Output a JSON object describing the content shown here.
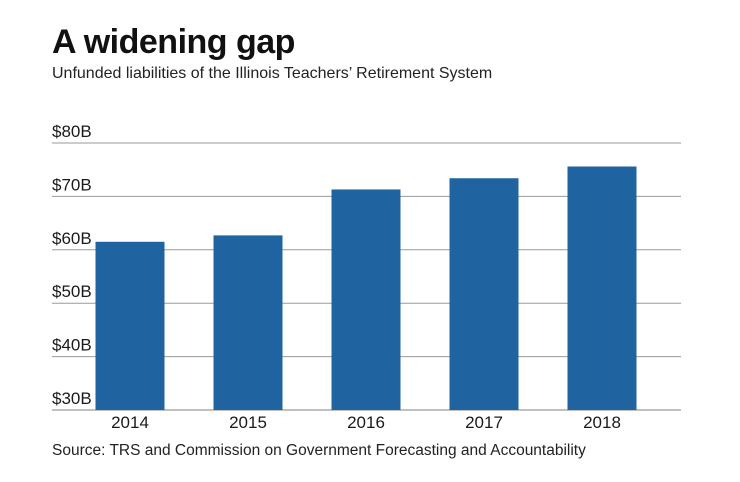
{
  "header": {
    "title": "A widening gap",
    "subtitle": "Unfunded liabilities of the Illinois Teachers’ Retirement System"
  },
  "footer": {
    "source": "Source: TRS and Commission on Government Forecasting and Accountability"
  },
  "colors": {
    "bar": "#1f64a0",
    "grid": "#9a9a9a",
    "axis": "#9a9a9a"
  },
  "chart_data": {
    "type": "bar",
    "title": "A widening gap",
    "subtitle": "Unfunded liabilities of the Illinois Teachers’ Retirement System",
    "xlabel": "",
    "ylabel": "",
    "categories": [
      "2014",
      "2015",
      "2016",
      "2017",
      "2018"
    ],
    "values": [
      61.5,
      62.7,
      71.3,
      73.4,
      75.6
    ],
    "ylim": [
      30,
      80
    ],
    "yticks": [
      30,
      40,
      50,
      60,
      70,
      80
    ],
    "ytick_labels": [
      "$30B",
      "$40B",
      "$50B",
      "$60B",
      "$70B",
      "$80B"
    ],
    "grid": true,
    "legend": "none"
  }
}
